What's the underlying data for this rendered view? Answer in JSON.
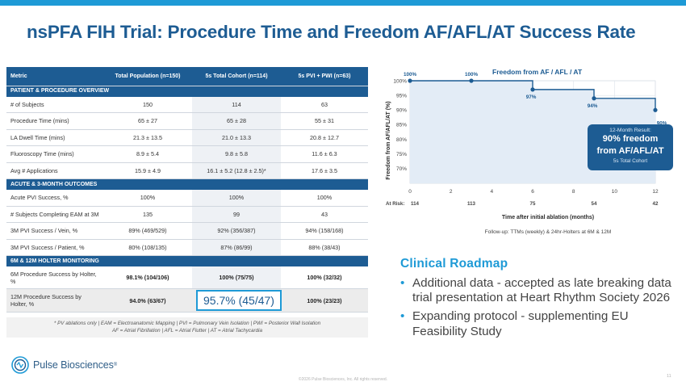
{
  "title": "nsPFA FIH Trial: Procedure Time and Freedom AF/AFL/AT Success Rate",
  "colors": {
    "brand_blue": "#1d5c93",
    "accent_blue": "#1e9ad6",
    "row_highlight": "#eef1f5"
  },
  "table": {
    "headers": [
      "Metric",
      "Total Population (n=150)",
      "5s Total Cohort (n=114)",
      "5s PVI + PWI (n=63)"
    ],
    "sections": [
      {
        "title": "PATIENT & PROCEDURE OVERVIEW",
        "rows": [
          [
            "# of Subjects",
            "150",
            "114",
            "63"
          ],
          [
            "Procedure Time (mins)",
            "65 ± 27",
            "65 ± 28",
            "55 ± 31"
          ],
          [
            "LA Dwell Time (mins)",
            "21.3 ± 13.5",
            "21.0 ± 13.3",
            "20.8 ± 12.7"
          ],
          [
            "Fluoroscopy Time (mins)",
            "8.9 ± 5.4",
            "9.8 ± 5.8",
            "11.6 ± 6.3"
          ],
          [
            "Avg # Applications",
            "15.9 ± 4.9",
            "16.1 ± 5.2 (12.8 ± 2.5)*",
            "17.6 ± 3.5"
          ]
        ]
      },
      {
        "title": "ACUTE & 3-MONTH OUTCOMES",
        "rows": [
          [
            "Acute PVI Success, %",
            "100%",
            "100%",
            "100%"
          ],
          [
            "# Subjects Completing EAM at 3M",
            "135",
            "99",
            "43"
          ],
          [
            "3M PVI Success / Vein, %",
            "89% (469/529)",
            "92% (356/387)",
            "94% (158/168)"
          ],
          [
            "3M PVI Success / Patient, %",
            "80% (108/135)",
            "87% (86/99)",
            "88% (38/43)"
          ]
        ]
      },
      {
        "title": "6M & 12M HOLTER MONITORING",
        "rows": [
          [
            "6M Procedure Success by Holter, %",
            "98.1% (104/106)",
            "100% (75/75)",
            "100% (32/32)"
          ],
          [
            "12M Procedure Success by Holter, %",
            "94.0% (63/67)",
            "95.7% (45/47)",
            "100% (23/23)"
          ]
        ]
      }
    ],
    "footnote_line1": "* PV ablations only | EAM = Electroanatomic Mapping | PVI = Pulmonary Vein Isolation | PWI = Posterior Wall Isolation",
    "footnote_line2": "AF = Atrial Fibrillation | AFL = Atrial Flutter | AT = Atrial Tachycardia"
  },
  "chart_data": {
    "type": "line",
    "title": "Freedom from AF / AFL / AT",
    "xlabel": "Time after initial ablation (months)",
    "ylabel": "Freedom from AF/AFL/AT (%)",
    "x_ticks": [
      0,
      2,
      4,
      6,
      8,
      10,
      12
    ],
    "y_ticks": [
      "70%",
      "75%",
      "80%",
      "85%",
      "90%",
      "95%",
      "100%"
    ],
    "xlim": [
      0,
      12
    ],
    "ylim": [
      65,
      100
    ],
    "grid": true,
    "series": [
      {
        "x": [
          0,
          3,
          6,
          9,
          12
        ],
        "y": [
          100,
          100,
          97,
          94,
          90
        ],
        "labels": [
          "100%",
          "100%",
          "97%",
          "94%",
          "90%"
        ]
      }
    ],
    "at_risk_label": "At Risk:",
    "at_risk": [
      {
        "x": 0,
        "n": "114"
      },
      {
        "x": 3,
        "n": "113"
      },
      {
        "x": 6,
        "n": "75"
      },
      {
        "x": 9,
        "n": "54"
      },
      {
        "x": 12,
        "n": "42"
      }
    ],
    "followup_note": "Follow-up: TTMs (weekly) & 24hr-Holters at 6M & 12M"
  },
  "result_box": {
    "line1": "12-Month Result:",
    "line2": "90% freedom",
    "line3": "from AF/AFL/AT",
    "line4": "5s Total Cohort"
  },
  "roadmap": {
    "title": "Clinical Roadmap",
    "bullet_char": "•",
    "items": [
      "Additional data - accepted as late breaking data trial presentation at Heart Rhythm Society 2026",
      "Expanding protocol - supplementing EU Feasibility Study"
    ]
  },
  "footer": {
    "logo_text": "Pulse Biosciences",
    "logo_mark": "®",
    "copyright": "©2026 Pulse Biosciences, Inc. All rights reserved.",
    "page_number": "11"
  }
}
